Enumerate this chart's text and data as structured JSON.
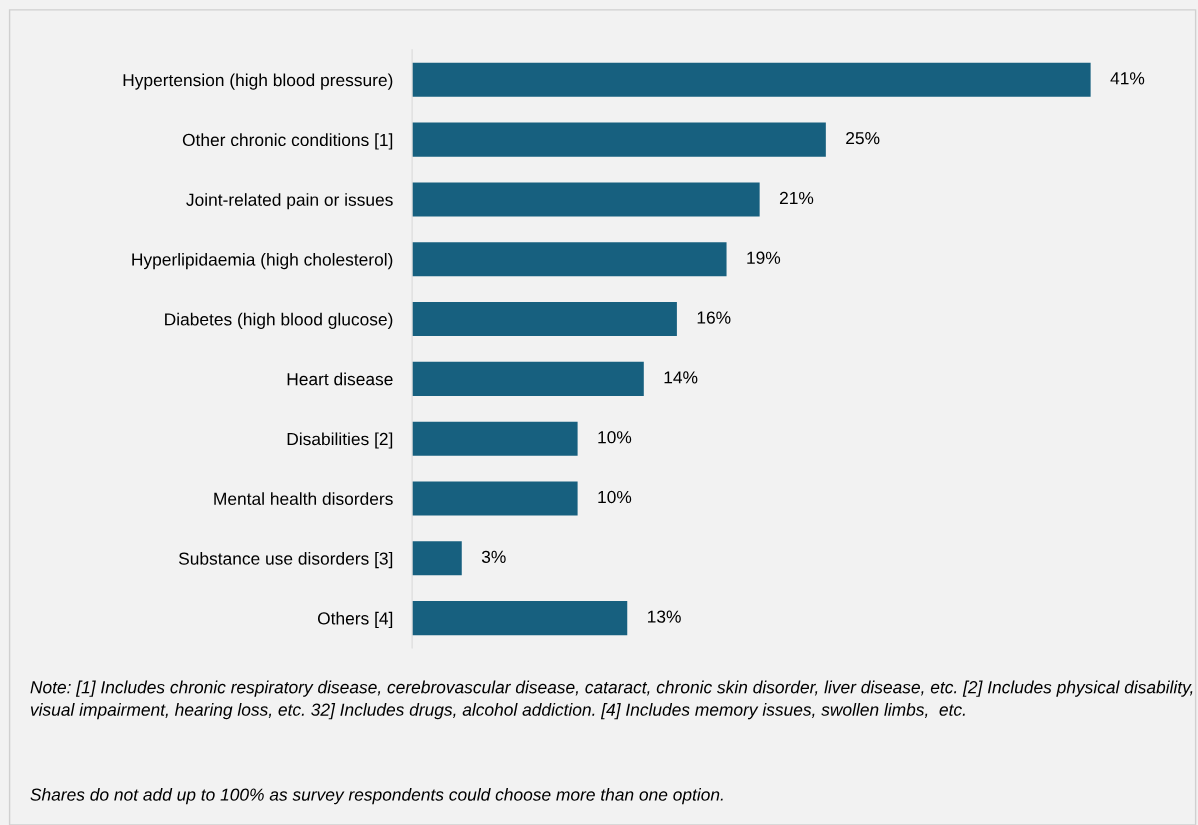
{
  "chart_data": {
    "type": "bar",
    "orientation": "horizontal",
    "categories": [
      "Hypertension (high blood pressure)",
      "Other chronic conditions [1]",
      "Joint-related pain or issues",
      "Hyperlipidaemia (high cholesterol)",
      "Diabetes (high blood glucose)",
      "Heart disease",
      "Disabilities [2]",
      "Mental health disorders",
      "Substance use disorders [3]",
      "Others [4]"
    ],
    "values": [
      41,
      25,
      21,
      19,
      16,
      14,
      10,
      10,
      3,
      13
    ],
    "value_labels": [
      "41%",
      "25%",
      "21%",
      "19%",
      "16%",
      "14%",
      "10%",
      "10%",
      "3%",
      "13%"
    ],
    "color": "#17607f",
    "grid": false,
    "legend": false,
    "tick_labels": "y",
    "annotations": [
      "Note: [1] Includes chronic respiratory disease, cerebrovascular disease, cataract, chronic skin disorder, liver disease, etc. [2] Includes physical disability, visual impairment, hearing loss, etc. 32] Includes drugs, alcohol addiction. [4] Includes memory issues, swollen limbs,  etc.",
      "Shares do not add up to 100% as survey respondents could choose more than one option."
    ]
  }
}
